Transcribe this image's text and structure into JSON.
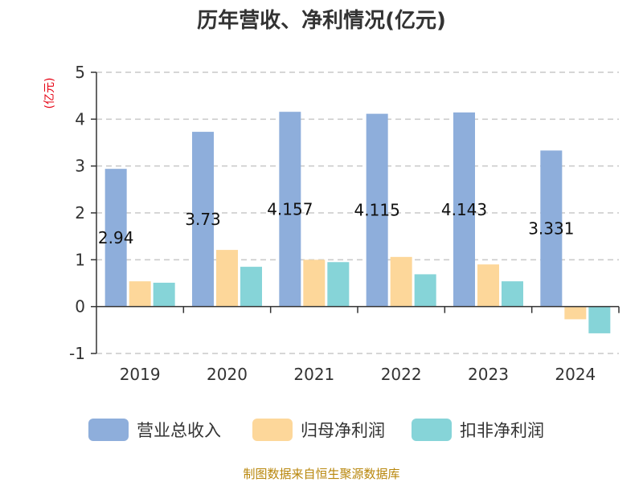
{
  "chart_data": {
    "type": "bar",
    "title": "历年营收、净利情况(亿元)",
    "unit_label": "(亿元)",
    "categories": [
      "2019",
      "2020",
      "2021",
      "2022",
      "2023",
      "2024"
    ],
    "ylim": [
      -1,
      5
    ],
    "yticks": [
      -1,
      0,
      1,
      2,
      3,
      4,
      5
    ],
    "grid": true,
    "legend_position": "bottom",
    "series": [
      {
        "name": "营业总收入",
        "color": "#8eaedb",
        "values": [
          2.94,
          3.73,
          4.157,
          4.115,
          4.143,
          3.331
        ],
        "data_labels": [
          "2.94",
          "3.73",
          "4.157",
          "4.115",
          "4.143",
          "3.331"
        ]
      },
      {
        "name": "归母净利润",
        "color": "#fdd79a",
        "values": [
          0.54,
          1.21,
          1.0,
          1.06,
          0.9,
          -0.27
        ]
      },
      {
        "name": "扣非净利润",
        "color": "#86d4d8",
        "values": [
          0.51,
          0.85,
          0.95,
          0.69,
          0.54,
          -0.57
        ]
      }
    ]
  },
  "source": "制图数据来自恒生聚源数据库"
}
